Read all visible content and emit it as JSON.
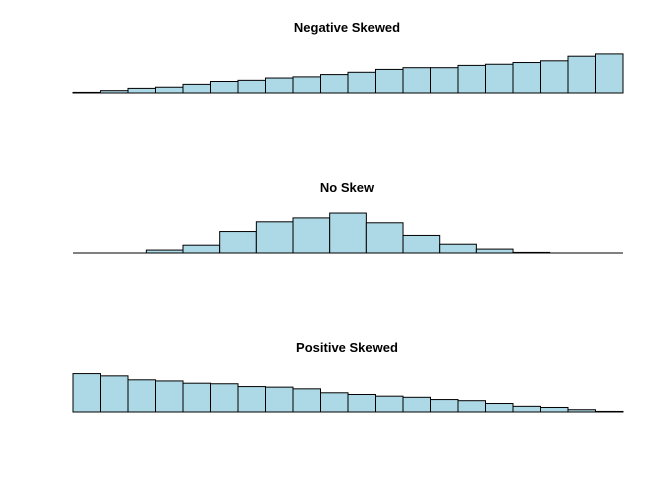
{
  "colors": {
    "bar_fill": "#add8e6",
    "bar_stroke": "#000000",
    "baseline": "#000000"
  },
  "chart_data": [
    {
      "type": "bar",
      "title": "Negative Skewed",
      "grid": false,
      "axes_shown": false,
      "values": [
        0.5,
        2,
        4,
        5,
        7.5,
        10,
        11,
        13,
        14,
        16,
        18,
        20.5,
        22,
        22,
        24,
        25,
        26.5,
        28,
        32,
        34
      ]
    },
    {
      "type": "bar",
      "title": "No Skew",
      "grid": false,
      "axes_shown": false,
      "values": [
        0,
        0,
        1.5,
        4,
        11,
        16,
        18,
        20.5,
        15.5,
        9,
        4.5,
        2,
        0.3,
        0,
        0
      ]
    },
    {
      "type": "bar",
      "title": "Positive Skewed",
      "grid": false,
      "axes_shown": false,
      "values": [
        34,
        32,
        28.5,
        27.5,
        25.5,
        25,
        22.5,
        22,
        20.5,
        17,
        15.5,
        14,
        13,
        11,
        10,
        7.5,
        5,
        4,
        2,
        0.5
      ]
    }
  ]
}
